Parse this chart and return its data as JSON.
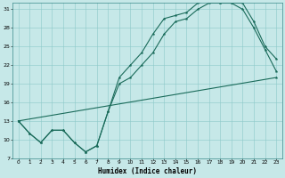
{
  "xlabel": "Humidex (Indice chaleur)",
  "ylabel": "",
  "bg_color": "#c6e8e8",
  "grid_color": "#8cc8c8",
  "line_color": "#1a6b5a",
  "xlim": [
    -0.5,
    23.5
  ],
  "ylim": [
    7,
    32
  ],
  "xticks": [
    0,
    1,
    2,
    3,
    4,
    5,
    6,
    7,
    8,
    9,
    10,
    11,
    12,
    13,
    14,
    15,
    16,
    17,
    18,
    19,
    20,
    21,
    22,
    23
  ],
  "yticks": [
    7,
    10,
    13,
    16,
    19,
    22,
    25,
    28,
    31
  ],
  "line1_x": [
    0,
    1,
    2,
    3,
    4,
    5,
    6,
    7,
    8,
    9,
    10,
    11,
    12,
    13,
    14,
    15,
    16,
    17,
    18,
    19,
    20,
    21,
    22,
    23
  ],
  "line1_y": [
    13,
    11,
    9.5,
    11.5,
    11.5,
    9.5,
    8,
    9,
    14.5,
    19,
    20,
    22,
    24,
    27,
    29,
    29.5,
    31,
    32,
    32,
    32,
    31,
    28,
    24.5,
    21
  ],
  "line2_x": [
    0,
    1,
    2,
    3,
    4,
    5,
    6,
    7,
    8,
    9,
    10,
    11,
    12,
    13,
    14,
    15,
    16,
    17,
    18,
    19,
    20,
    21,
    22,
    23
  ],
  "line2_y": [
    13,
    11,
    9.5,
    11.5,
    11.5,
    9.5,
    8,
    9,
    14.5,
    20,
    22,
    24,
    27,
    29.5,
    30,
    30.5,
    32,
    32.5,
    32,
    32,
    32,
    29,
    25,
    23
  ],
  "line3_x": [
    0,
    23
  ],
  "line3_y": [
    13,
    20
  ]
}
